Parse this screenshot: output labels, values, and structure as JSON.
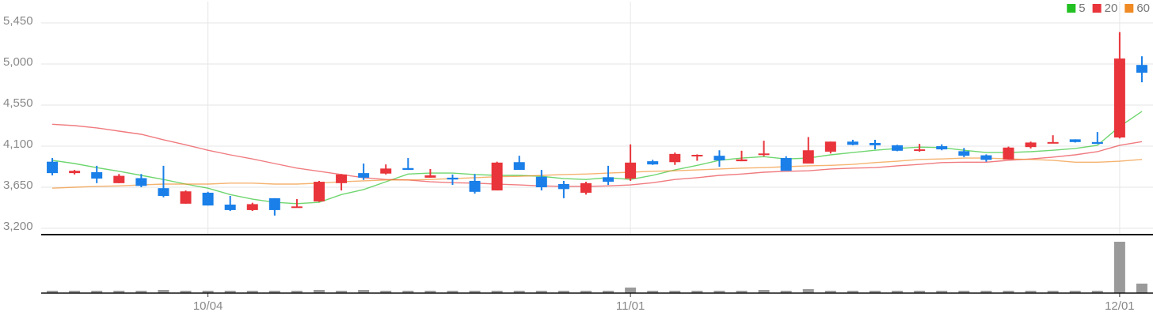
{
  "chart_data": {
    "type": "candlestick",
    "categories": [
      null,
      null,
      null,
      null,
      null,
      null,
      null,
      "10/04",
      null,
      null,
      null,
      null,
      null,
      null,
      null,
      null,
      null,
      null,
      null,
      null,
      null,
      null,
      null,
      null,
      null,
      null,
      "11/01",
      null,
      null,
      null,
      null,
      null,
      null,
      null,
      null,
      null,
      null,
      null,
      null,
      null,
      null,
      null,
      null,
      null,
      null,
      null,
      null,
      null,
      "12/01",
      null
    ],
    "open": [
      3930,
      3805,
      3815,
      3695,
      3750,
      3640,
      3470,
      3590,
      3460,
      3400,
      3530,
      3430,
      3495,
      3695,
      3805,
      3800,
      3860,
      3755,
      3755,
      3720,
      3615,
      3925,
      3765,
      3685,
      3590,
      3760,
      3745,
      3935,
      3925,
      3990,
      3995,
      3935,
      4005,
      3970,
      3910,
      4040,
      4150,
      4135,
      4110,
      4060,
      4100,
      4045,
      4000,
      3955,
      4090,
      4130,
      4175,
      4145,
      4195,
      4990
    ],
    "high": [
      3970,
      3840,
      3885,
      3795,
      3795,
      3885,
      3615,
      3600,
      3555,
      3480,
      3530,
      3520,
      3720,
      3795,
      3910,
      3900,
      3970,
      3850,
      3790,
      3795,
      3930,
      3995,
      3840,
      3720,
      3710,
      3885,
      4120,
      3950,
      4030,
      4010,
      4055,
      4050,
      4160,
      3990,
      4200,
      4150,
      4170,
      4170,
      4115,
      4125,
      4120,
      4080,
      4010,
      4095,
      4150,
      4220,
      4175,
      4255,
      5350,
      5085
    ],
    "low": [
      3780,
      3790,
      3695,
      3695,
      3650,
      3540,
      3470,
      3450,
      3390,
      3390,
      3340,
      3430,
      3490,
      3615,
      3730,
      3790,
      3840,
      3755,
      3675,
      3580,
      3615,
      3840,
      3615,
      3530,
      3570,
      3675,
      3720,
      3895,
      3895,
      3940,
      3875,
      3935,
      3990,
      3830,
      3910,
      4020,
      4110,
      4065,
      4045,
      4040,
      4055,
      3980,
      3930,
      3955,
      4075,
      4130,
      4140,
      4125,
      4185,
      4800
    ],
    "close": [
      3805,
      3830,
      3745,
      3775,
      3665,
      3555,
      3605,
      3450,
      3400,
      3465,
      3400,
      3440,
      3710,
      3790,
      3755,
      3855,
      3840,
      3780,
      3735,
      3600,
      3920,
      3840,
      3650,
      3630,
      3695,
      3710,
      3920,
      3900,
      4015,
      4005,
      3945,
      3955,
      4020,
      3830,
      4055,
      4150,
      4115,
      4110,
      4050,
      4065,
      4065,
      3995,
      3950,
      4085,
      4140,
      4145,
      4145,
      4125,
      5060,
      4905
    ],
    "up_color": "#e8343a",
    "down_color": "#1a7fe8",
    "moving_averages": [
      {
        "name": "5",
        "color": "#22c022",
        "values": [
          3945,
          3910,
          3865,
          3825,
          3780,
          3735,
          3685,
          3640,
          3570,
          3520,
          3485,
          3470,
          3485,
          3570,
          3625,
          3710,
          3795,
          3805,
          3805,
          3790,
          3780,
          3780,
          3770,
          3745,
          3735,
          3755,
          3735,
          3780,
          3840,
          3890,
          3945,
          3970,
          3985,
          3960,
          3970,
          4005,
          4030,
          4055,
          4075,
          4090,
          4085,
          4055,
          4030,
          4030,
          4040,
          4055,
          4075,
          4110,
          4315,
          4480
        ]
      },
      {
        "name": "20",
        "color": "#e8343a",
        "values": [
          4340,
          4325,
          4300,
          4265,
          4230,
          4170,
          4115,
          4055,
          4005,
          3960,
          3910,
          3860,
          3825,
          3790,
          3755,
          3735,
          3730,
          3710,
          3700,
          3695,
          3685,
          3675,
          3665,
          3660,
          3660,
          3665,
          3675,
          3700,
          3735,
          3755,
          3780,
          3795,
          3815,
          3825,
          3830,
          3850,
          3860,
          3865,
          3885,
          3900,
          3920,
          3925,
          3925,
          3945,
          3960,
          3980,
          4005,
          4040,
          4110,
          4150
        ]
      },
      {
        "name": "60",
        "color": "#f08a24",
        "values": [
          3640,
          3650,
          3660,
          3665,
          3675,
          3685,
          3685,
          3685,
          3695,
          3695,
          3685,
          3685,
          3695,
          3710,
          3720,
          3730,
          3730,
          3735,
          3745,
          3755,
          3765,
          3770,
          3780,
          3790,
          3795,
          3805,
          3815,
          3825,
          3830,
          3840,
          3850,
          3860,
          3865,
          3875,
          3885,
          3890,
          3900,
          3920,
          3935,
          3955,
          3960,
          3970,
          3970,
          3960,
          3955,
          3945,
          3925,
          3925,
          3935,
          3955
        ]
      }
    ],
    "ylim": [
      3131,
      5684
    ],
    "yticks": [
      {
        "value": 3200,
        "label": "3,200"
      },
      {
        "value": 3650,
        "label": "3,650"
      },
      {
        "value": 4100,
        "label": "4,100"
      },
      {
        "value": 4550,
        "label": "4,550"
      },
      {
        "value": 5000,
        "label": "5,000"
      },
      {
        "value": 5450,
        "label": "5,450"
      }
    ],
    "grid": true,
    "legend": "top-right",
    "volume": {
      "color": "#9a9a9a",
      "ylim": [
        0,
        73
      ],
      "values": [
        3,
        3,
        3,
        3,
        3,
        4,
        3,
        3,
        3,
        3,
        3,
        3,
        4,
        3,
        4,
        3,
        3,
        3,
        3,
        3,
        3,
        3,
        3,
        3,
        3,
        3,
        7,
        3,
        3,
        3,
        3,
        3,
        4,
        3,
        5,
        3,
        3,
        3,
        3,
        3,
        3,
        3,
        3,
        3,
        3,
        3,
        3,
        3,
        65,
        12
      ]
    }
  }
}
